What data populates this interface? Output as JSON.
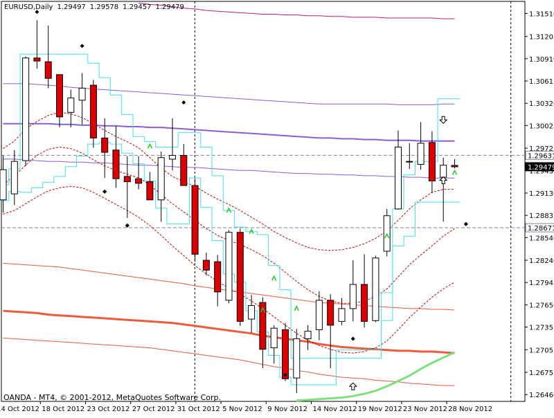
{
  "header": {
    "symbol": "EURUSD,Daily",
    "open": "1.29497",
    "high": "1.29578",
    "low": "1.29457",
    "close": "1.29479"
  },
  "footer": {
    "text": "OANDA - MT4, © 2001-2012, MetaQuotes Software Corp."
  },
  "colors": {
    "bull_body": "#ffffff",
    "bear_body": "#dd0000",
    "candle_outline": "#000000",
    "envelope_fast": "#cc0000",
    "channel": "#40e0f0",
    "ma_slow_band": "#8a5cd6",
    "ma_red_band": "#ef5a3a",
    "ma_magenta": "#c0187a",
    "ma_green": "#7ce07c",
    "fractal": "#000000",
    "arrow_green": "#22cc22",
    "hline": "#8080a0",
    "price_tag_bg": "#000000"
  },
  "chart_data": {
    "type": "candlestick",
    "symbol": "EURUSD",
    "timeframe": "Daily",
    "ylim": [
      1.2637,
      1.3167
    ],
    "y_ticks": [
      "1.31510",
      "1.31205",
      "1.30910",
      "1.30615",
      "1.30320",
      "1.30025",
      "1.29725",
      "1.29430",
      "1.29130",
      "1.28835",
      "1.28540",
      "1.28240",
      "1.27945",
      "1.27650",
      "1.27355",
      "1.27055",
      "1.26755",
      "1.26460"
    ],
    "x_ticks": [
      "14 Oct 2012",
      "18 Oct 2012",
      "23 Oct 2012",
      "27 Oct 2012",
      "31 Oct 2012",
      "5 Nov 2012",
      "9 Nov 2012",
      "14 Nov 2012",
      "19 Nov 2012",
      "23 Nov 2012",
      "28 Nov 2012"
    ],
    "price_tags": [
      {
        "label": "1.29631",
        "value": 1.29631,
        "style": "outline"
      },
      {
        "label": "1.29479",
        "value": 1.29479,
        "style": "filled"
      },
      {
        "label": "1.28671",
        "value": 1.28671,
        "style": "outline"
      }
    ],
    "candles": [
      {
        "o": 1.2904,
        "h": 1.2963,
        "l": 1.2887,
        "c": 1.2944
      },
      {
        "o": 1.2912,
        "h": 1.297,
        "l": 1.2897,
        "c": 1.2955
      },
      {
        "o": 1.2956,
        "h": 1.3094,
        "l": 1.2949,
        "c": 1.3092
      },
      {
        "o": 1.3092,
        "h": 1.3142,
        "l": 1.3078,
        "c": 1.3088
      },
      {
        "o": 1.3087,
        "h": 1.3135,
        "l": 1.3052,
        "c": 1.3065
      },
      {
        "o": 1.307,
        "h": 1.307,
        "l": 1.3,
        "c": 1.3014
      },
      {
        "o": 1.302,
        "h": 1.305,
        "l": 1.3,
        "c": 1.3039
      },
      {
        "o": 1.3036,
        "h": 1.3072,
        "l": 1.3004,
        "c": 1.3052
      },
      {
        "o": 1.3056,
        "h": 1.3063,
        "l": 1.2973,
        "c": 1.2986
      },
      {
        "o": 1.2986,
        "h": 1.3012,
        "l": 1.2933,
        "c": 1.2967
      },
      {
        "o": 1.297,
        "h": 1.3002,
        "l": 1.292,
        "c": 1.2932
      },
      {
        "o": 1.2935,
        "h": 1.2962,
        "l": 1.288,
        "c": 1.2928
      },
      {
        "o": 1.2932,
        "h": 1.2962,
        "l": 1.2918,
        "c": 1.2926
      },
      {
        "o": 1.2928,
        "h": 1.2941,
        "l": 1.2904,
        "c": 1.2904
      },
      {
        "o": 1.2904,
        "h": 1.2968,
        "l": 1.2875,
        "c": 1.296
      },
      {
        "o": 1.2958,
        "h": 1.3012,
        "l": 1.2943,
        "c": 1.2963
      },
      {
        "o": 1.2963,
        "h": 1.2978,
        "l": 1.2924,
        "c": 1.2923
      },
      {
        "o": 1.2923,
        "h": 1.2932,
        "l": 1.2822,
        "c": 1.2832
      },
      {
        "o": 1.2824,
        "h": 1.2834,
        "l": 1.2804,
        "c": 1.2811
      },
      {
        "o": 1.2822,
        "h": 1.2831,
        "l": 1.2763,
        "c": 1.2782
      },
      {
        "o": 1.2771,
        "h": 1.2864,
        "l": 1.2767,
        "c": 1.2861
      },
      {
        "o": 1.2861,
        "h": 1.2866,
        "l": 1.2737,
        "c": 1.2743
      },
      {
        "o": 1.2746,
        "h": 1.2778,
        "l": 1.2728,
        "c": 1.2764
      },
      {
        "o": 1.2768,
        "h": 1.2775,
        "l": 1.2681,
        "c": 1.2706
      },
      {
        "o": 1.2708,
        "h": 1.2738,
        "l": 1.2687,
        "c": 1.2734
      },
      {
        "o": 1.2732,
        "h": 1.2741,
        "l": 1.2664,
        "c": 1.2667
      },
      {
        "o": 1.2668,
        "h": 1.2733,
        "l": 1.2648,
        "c": 1.272
      },
      {
        "o": 1.272,
        "h": 1.2738,
        "l": 1.2705,
        "c": 1.273
      },
      {
        "o": 1.2732,
        "h": 1.2783,
        "l": 1.2718,
        "c": 1.2771
      },
      {
        "o": 1.2771,
        "h": 1.2779,
        "l": 1.2681,
        "c": 1.2738
      },
      {
        "o": 1.2743,
        "h": 1.2774,
        "l": 1.2738,
        "c": 1.276
      },
      {
        "o": 1.276,
        "h": 1.2824,
        "l": 1.2743,
        "c": 1.2792
      },
      {
        "o": 1.2792,
        "h": 1.2832,
        "l": 1.2735,
        "c": 1.2743
      },
      {
        "o": 1.2744,
        "h": 1.283,
        "l": 1.2742,
        "c": 1.2827
      },
      {
        "o": 1.2836,
        "h": 1.2892,
        "l": 1.2829,
        "c": 1.2883
      },
      {
        "o": 1.2892,
        "h": 1.2996,
        "l": 1.2891,
        "c": 1.2974
      },
      {
        "o": 1.2955,
        "h": 1.2979,
        "l": 1.2945,
        "c": 1.2955
      },
      {
        "o": 1.2951,
        "h": 1.3007,
        "l": 1.2944,
        "c": 1.2979
      },
      {
        "o": 1.298,
        "h": 1.2995,
        "l": 1.2913,
        "c": 1.2929
      },
      {
        "o": 1.2934,
        "h": 1.296,
        "l": 1.2875,
        "c": 1.295
      },
      {
        "o": 1.29497,
        "h": 1.29578,
        "l": 1.29457,
        "c": 1.29479
      }
    ],
    "indicators": {
      "channel_upper": [
        1.2924,
        1.2945,
        1.3097,
        1.3097,
        1.3097,
        1.3097,
        1.3097,
        1.3097,
        1.3085,
        1.3066,
        1.3043,
        1.3017,
        1.2988,
        1.2981,
        1.2974,
        1.2974,
        1.2993,
        1.2993,
        1.2974,
        1.2936,
        1.289,
        1.2868,
        1.2862,
        1.2858,
        1.2817,
        1.2785,
        1.2694,
        1.2694,
        1.2694,
        1.2694,
        1.2694,
        1.2694,
        1.2694,
        1.2694,
        1.2781,
        1.2892,
        1.2937,
        1.2955,
        1.2955,
        1.3038,
        1.3038
      ],
      "channel_lower": [
        1.2903,
        1.2915,
        1.2914,
        1.292,
        1.2927,
        1.2935,
        1.2948,
        1.2962,
        1.2978,
        1.298,
        1.2978,
        1.2966,
        1.2952,
        1.2929,
        1.2893,
        1.2872,
        1.2872,
        1.2933,
        1.2894,
        1.285,
        1.2806,
        1.2795,
        1.2757,
        1.2729,
        1.2698,
        1.2669,
        1.2659,
        1.2659,
        1.2659,
        1.2659,
        1.2705,
        1.2705,
        1.2705,
        1.2705,
        1.2744,
        1.2843,
        1.2856,
        1.2901,
        1.2901,
        1.2901,
        1.2901
      ],
      "env_upper": [
        1.2972,
        1.2982,
        1.2998,
        1.3008,
        1.3016,
        1.302,
        1.3018,
        1.3013,
        1.3005,
        1.2996,
        1.2988,
        1.2981,
        1.2973,
        1.296,
        1.2946,
        1.2935,
        1.2928,
        1.2922,
        1.2913,
        1.2905,
        1.2898,
        1.289,
        1.2881,
        1.2872,
        1.2862,
        1.2854,
        1.2847,
        1.2841,
        1.2838,
        1.2837,
        1.2838,
        1.2841,
        1.2846,
        1.2853,
        1.2863,
        1.2877,
        1.2892,
        1.2904,
        1.2914,
        1.2918,
        1.2918
      ],
      "env_mid": [
        1.2924,
        1.2936,
        1.295,
        1.2963,
        1.2971,
        1.2974,
        1.2972,
        1.2966,
        1.2957,
        1.2949,
        1.2943,
        1.2938,
        1.2933,
        1.2924,
        1.2911,
        1.2899,
        1.2888,
        1.2877,
        1.2866,
        1.2857,
        1.285,
        1.2845,
        1.2838,
        1.283,
        1.282,
        1.2808,
        1.2796,
        1.2785,
        1.2776,
        1.277,
        1.2767,
        1.2767,
        1.277,
        1.2776,
        1.2786,
        1.2802,
        1.2818,
        1.2831,
        1.2843,
        1.2856,
        1.2866
      ],
      "env_lower": [
        1.2885,
        1.289,
        1.2899,
        1.2908,
        1.2916,
        1.292,
        1.2922,
        1.292,
        1.2914,
        1.2906,
        1.2898,
        1.289,
        1.2881,
        1.287,
        1.2857,
        1.2843,
        1.283,
        1.2817,
        1.2806,
        1.2796,
        1.2787,
        1.2779,
        1.277,
        1.276,
        1.2749,
        1.2738,
        1.2727,
        1.2718,
        1.2711,
        1.2706,
        1.2702,
        1.2701,
        1.2703,
        1.2708,
        1.2717,
        1.2732,
        1.2748,
        1.2762,
        1.2775,
        1.2786,
        1.2795
      ],
      "ma_slow_upper": [
        1.3058,
        1.3058,
        1.3058,
        1.3057,
        1.3056,
        1.3055,
        1.3053,
        1.3052,
        1.3051,
        1.305,
        1.3049,
        1.3048,
        1.3047,
        1.3046,
        1.3045,
        1.3044,
        1.3043,
        1.3042,
        1.3041,
        1.304,
        1.3039,
        1.3038,
        1.3037,
        1.3036,
        1.3035,
        1.3034,
        1.3033,
        1.3032,
        1.3031,
        1.3031,
        1.3031,
        1.3031,
        1.3031,
        1.3031,
        1.3031,
        1.303,
        1.303,
        1.303,
        1.303,
        1.3031,
        1.3031
      ],
      "ma_slow": [
        1.3005,
        1.3005,
        1.3005,
        1.3005,
        1.3005,
        1.3004,
        1.3004,
        1.3003,
        1.3003,
        1.3002,
        1.3002,
        1.3001,
        1.3001,
        1.3,
        1.3,
        1.2999,
        1.2998,
        1.2997,
        1.2996,
        1.2995,
        1.2994,
        1.2993,
        1.2992,
        1.2991,
        1.299,
        1.2989,
        1.2988,
        1.2987,
        1.2986,
        1.2986,
        1.2985,
        1.2985,
        1.2984,
        1.2984,
        1.2983,
        1.2983,
        1.2983,
        1.2982,
        1.2982,
        1.2982,
        1.2982
      ],
      "ma_slow_lower": [
        1.2958,
        1.2958,
        1.2957,
        1.2956,
        1.2955,
        1.2955,
        1.2954,
        1.2954,
        1.2953,
        1.2953,
        1.2952,
        1.2951,
        1.295,
        1.295,
        1.2949,
        1.2948,
        1.2947,
        1.2947,
        1.2946,
        1.2945,
        1.2944,
        1.2943,
        1.2943,
        1.2942,
        1.2941,
        1.294,
        1.2939,
        1.2939,
        1.2938,
        1.2938,
        1.2937,
        1.2937,
        1.2936,
        1.2936,
        1.2935,
        1.2935,
        1.2934,
        1.2934,
        1.2933,
        1.2933,
        1.2933
      ],
      "ma_red_upper": [
        1.282,
        1.2819,
        1.2818,
        1.2817,
        1.2816,
        1.2815,
        1.2813,
        1.2811,
        1.2809,
        1.2807,
        1.2805,
        1.2803,
        1.2801,
        1.2799,
        1.2797,
        1.2795,
        1.2793,
        1.279,
        1.2788,
        1.2786,
        1.2784,
        1.2782,
        1.278,
        1.2778,
        1.2776,
        1.2774,
        1.2772,
        1.277,
        1.2768,
        1.2767,
        1.2766,
        1.2765,
        1.2764,
        1.2763,
        1.2762,
        1.2761,
        1.276,
        1.276,
        1.2759,
        1.2759,
        1.2758
      ],
      "ma_red": [
        1.2757,
        1.2756,
        1.2755,
        1.2754,
        1.2752,
        1.2751,
        1.275,
        1.2749,
        1.2748,
        1.2747,
        1.2746,
        1.2745,
        1.2744,
        1.2743,
        1.2742,
        1.2741,
        1.2739,
        1.2737,
        1.2735,
        1.2733,
        1.2731,
        1.2729,
        1.2727,
        1.2724,
        1.2722,
        1.272,
        1.2718,
        1.2716,
        1.2713,
        1.2711,
        1.2709,
        1.2708,
        1.2707,
        1.2706,
        1.2705,
        1.2704,
        1.2704,
        1.2703,
        1.2703,
        1.2702,
        1.2701
      ],
      "ma_red_lower": [
        1.2721,
        1.272,
        1.2719,
        1.2718,
        1.2717,
        1.2716,
        1.2715,
        1.2714,
        1.2713,
        1.2712,
        1.2711,
        1.271,
        1.2709,
        1.2708,
        1.2706,
        1.2704,
        1.2702,
        1.27,
        1.2698,
        1.2696,
        1.2694,
        1.2692,
        1.2689,
        1.2686,
        1.2683,
        1.2681,
        1.2678,
        1.2676,
        1.2673,
        1.2671,
        1.2669,
        1.2668,
        1.2667,
        1.2665,
        1.2664,
        1.2663,
        1.2661,
        1.266,
        1.2659,
        1.2658,
        1.2658
      ],
      "ma_magenta_start_index": 12,
      "ma_magenta": [
        1.3165,
        1.3163,
        1.3162,
        1.316,
        1.3158,
        1.3157,
        1.3155,
        1.3154,
        1.3153,
        1.3152,
        1.3151,
        1.315,
        1.315,
        1.3149,
        1.3149,
        1.3148,
        1.3148,
        1.3147,
        1.3147,
        1.3146,
        1.3146,
        1.3146,
        1.3145,
        1.3145,
        1.3145,
        1.3145,
        1.3145,
        1.3144,
        1.3144
      ],
      "ma_green_start_index": 26,
      "ma_green": [
        1.2638,
        1.2639,
        1.264,
        1.2641,
        1.2642,
        1.2644,
        1.2647,
        1.2651,
        1.2657,
        1.2664,
        1.2671,
        1.268,
        1.2688,
        1.2695,
        1.2702
      ]
    },
    "fractals": [
      {
        "i": 3,
        "value": 1.3153
      },
      {
        "i": 7,
        "value": 1.3108
      },
      {
        "i": 9,
        "value": 1.2915
      },
      {
        "i": 11,
        "value": 1.287
      },
      {
        "i": 16,
        "value": 1.3033
      },
      {
        "i": 41,
        "value": 1.2872
      }
    ],
    "fractals_low": [
      {
        "i": 9,
        "value": 1.2915
      },
      {
        "i": 11,
        "value": 1.287
      },
      {
        "i": 25,
        "value": 1.2672
      },
      {
        "i": 31,
        "value": 1.272
      },
      {
        "i": 41,
        "value": 1.2872
      }
    ],
    "up_arrows": [
      {
        "i": 13,
        "value": 1.2975
      },
      {
        "i": 20,
        "value": 1.289
      },
      {
        "i": 22,
        "value": 1.2862
      },
      {
        "i": 24,
        "value": 1.28
      },
      {
        "i": 23,
        "value": 1.2758
      },
      {
        "i": 26,
        "value": 1.276
      },
      {
        "i": 34,
        "value": 1.2856
      },
      {
        "i": 40,
        "value": 1.294
      }
    ],
    "hollow_arrows_up": [
      {
        "i": 39,
        "value": 1.293
      },
      {
        "i": 31,
        "value": 1.2657
      }
    ],
    "hollow_arrows_down": [
      {
        "i": 39,
        "value": 1.301
      }
    ],
    "vlines_at_index": [
      17,
      45
    ]
  }
}
